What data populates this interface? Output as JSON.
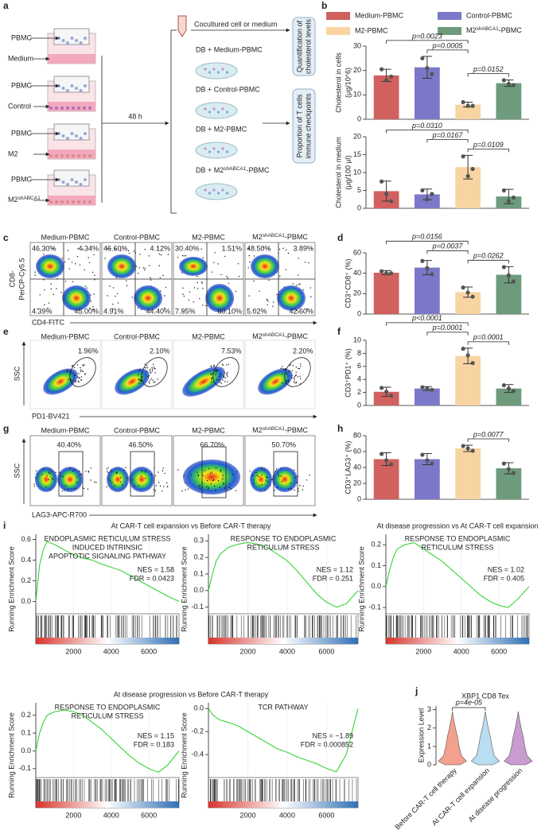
{
  "a": {
    "label": "a",
    "tubes": [
      {
        "top": "PBMC",
        "bottom": "Medium"
      },
      {
        "top": "PBMC",
        "bottom": "Control"
      },
      {
        "top": "PBMC",
        "bottom": "M2"
      },
      {
        "top": "PBMC",
        "bottom": {
          "pre": "M2",
          "sup": "shABCA1"
        }
      }
    ],
    "time": "48 h",
    "transfer": "Cocultured cell or medium",
    "dishes": [
      "DB + Medium-PBMC",
      "DB + Control-PBMC",
      "DB + M2-PBMC",
      {
        "pre": "DB + M2",
        "sup": "shABCA1",
        "post": "-PBMC"
      }
    ],
    "outputs": [
      [
        "Quantification of",
        "cholesterol levels"
      ],
      [
        "Proportion of T cells",
        "immune checkpoints"
      ]
    ]
  },
  "groups": [
    {
      "name": "Medium-PBMC",
      "color": "#d0615f"
    },
    {
      "name": "Control-PBMC",
      "color": "#7c78c9"
    },
    {
      "name": "M2-PBMC",
      "color": "#f8d4a3"
    },
    {
      "name": {
        "pre": "M2",
        "sup": "shABCA1",
        "post": "-PBMC"
      },
      "color": "#6d9b7c"
    }
  ],
  "b": {
    "label": "b",
    "charts": [
      {
        "ylabel": [
          "Cholesterol in cells",
          "(μg/10^6)"
        ],
        "ylim": [
          0,
          30
        ],
        "yticks": [
          0,
          10,
          20,
          30
        ],
        "values": [
          18,
          21.3,
          6,
          14.8
        ],
        "errors": [
          2.5,
          4.5,
          1,
          1.3
        ],
        "points": [
          [
            20.5,
            16,
            17.5
          ],
          [
            25,
            21,
            18.5
          ],
          [
            7,
            5.5,
            5.5
          ],
          [
            16,
            14.5,
            14
          ]
        ],
        "comparisons": [
          {
            "label": "p=0.0023",
            "bars": [
              0,
              2
            ]
          },
          {
            "label": "p=0.0005",
            "bars": [
              1,
              2
            ]
          },
          {
            "label": "p=0.0152",
            "bars": [
              2,
              3
            ]
          }
        ]
      },
      {
        "ylabel": [
          "Cholesterol in medium",
          "(μg/100 μl)"
        ],
        "ylim": [
          0,
          20
        ],
        "yticks": [
          0,
          5,
          10,
          15,
          20
        ],
        "values": [
          4.8,
          3.9,
          11.5,
          3.3
        ],
        "errors": [
          2.8,
          1.5,
          3.3,
          2
        ],
        "points": [
          [
            7.5,
            4,
            2
          ],
          [
            5,
            2.5,
            4
          ],
          [
            14.5,
            9,
            11
          ],
          [
            5,
            2,
            3
          ]
        ],
        "comparisons": [
          {
            "label": "p=0.0310",
            "bars": [
              0,
              2
            ]
          },
          {
            "label": "p=0.0167",
            "bars": [
              1,
              2
            ]
          },
          {
            "label": "p=0.0109",
            "bars": [
              2,
              3
            ]
          }
        ]
      }
    ]
  },
  "c": {
    "label": "c",
    "ylabel": [
      "CD8-",
      "PerCP-Cy5.5"
    ],
    "xlabel": "CD4-FITC",
    "quadrants": [
      [
        "46.30%",
        "4.34%",
        "4.39%",
        "45.00%"
      ],
      [
        "46.60%",
        "4.12%",
        "4.91%",
        "44.40%"
      ],
      [
        "30.40%",
        "1.51%",
        "7.95%",
        "60.10%"
      ],
      [
        "48.50%",
        "3.89%",
        "5.02%",
        "42.60%"
      ]
    ]
  },
  "d": {
    "label": "d",
    "ylabel": [
      "CD3⁺CD8⁺ (%)"
    ],
    "ylim": [
      0,
      60
    ],
    "yticks": [
      0,
      20,
      40,
      60
    ],
    "values": [
      40.5,
      45.5,
      21.5,
      38.5
    ],
    "errors": [
      2,
      7,
      5,
      8
    ],
    "points": [
      [
        42,
        40,
        40
      ],
      [
        52,
        45,
        39
      ],
      [
        26,
        21,
        17
      ],
      [
        46,
        38,
        32
      ]
    ],
    "comparisons": [
      {
        "label": "p=0.0156",
        "bars": [
          0,
          2
        ]
      },
      {
        "label": "p=0.0037",
        "bars": [
          1,
          2
        ]
      },
      {
        "label": "p=0.0262",
        "bars": [
          2,
          3
        ]
      }
    ]
  },
  "e": {
    "label": "e",
    "ylabel": "SSC",
    "xlabel": "PD1-BV421",
    "gates": [
      "1.96%",
      "2.10%",
      "7.53%",
      "2.20%"
    ]
  },
  "f": {
    "label": "f",
    "ylabel": [
      "CD3⁺PD1⁺ (%)"
    ],
    "ylim": [
      0,
      10
    ],
    "yticks": [
      0,
      2,
      4,
      6,
      8,
      10
    ],
    "values": [
      2.1,
      2.6,
      7.6,
      2.6
    ],
    "errors": [
      0.7,
      0.3,
      1.2,
      0.6
    ],
    "points": [
      [
        2.7,
        2.1,
        1.5
      ],
      [
        2.8,
        2.6,
        2.4
      ],
      [
        8.7,
        7.7,
        6.5
      ],
      [
        3.1,
        2.6,
        2.2
      ]
    ],
    "comparisons": [
      {
        "label": "p<0.0001",
        "bars": [
          0,
          2
        ]
      },
      {
        "label": "p=0.0001",
        "bars": [
          1,
          2
        ]
      },
      {
        "label": "p=0.0001",
        "bars": [
          2,
          3
        ]
      }
    ]
  },
  "g": {
    "label": "g",
    "ylabel": "SSC",
    "xlabel": "LAG3-APC-R700",
    "gates": [
      "40.40%",
      "46.50%",
      "66.70%",
      "50.70%"
    ]
  },
  "h": {
    "label": "h",
    "ylabel": [
      "CD3⁺LAG3⁺ (%)"
    ],
    "ylim": [
      0,
      80
    ],
    "yticks": [
      0,
      20,
      40,
      60,
      80
    ],
    "values": [
      50.5,
      50.5,
      64,
      39
    ],
    "errors": [
      8,
      7,
      4,
      7
    ],
    "points": [
      [
        57,
        49,
        44
      ],
      [
        56,
        49,
        45
      ],
      [
        67,
        64,
        61
      ],
      [
        45,
        38,
        33
      ]
    ],
    "comparisons": [
      {
        "label": "p=0.0077",
        "bars": [
          2,
          3
        ]
      }
    ]
  },
  "i": {
    "label": "i",
    "headers": [
      "At CAR-T cell expansion vs Before CAR-T therapy",
      "At disease progression vs At CAR-T cell expansion",
      "At disease progression vs Before CAR-T therapy"
    ],
    "ylabel": "Running Enrichment Score",
    "plots": [
      {
        "title": [
          "ENDOPLASMIC RETICULUM STRESS",
          "INDUCED INTRINSIC",
          "APOPTOTIC SIGNALING PATHWAY"
        ],
        "nes": "NES = 1.58",
        "fdr": "FDR = 0.0423",
        "ylim": [
          -0.12,
          0.65
        ],
        "yticks": [
          {
            "value": 0,
            "label": "0.0"
          },
          0.2,
          0.4,
          0.6
        ],
        "xlim": [
          0,
          7600
        ],
        "xticks": [
          2000,
          4000,
          6000
        ],
        "x": [
          0,
          200,
          400,
          600,
          1000,
          1500,
          2000,
          2500,
          3000,
          3500,
          4000,
          4500,
          5000,
          5500,
          6000,
          6500,
          7000,
          7600
        ],
        "values": [
          0,
          0.35,
          0.5,
          0.58,
          0.55,
          0.5,
          0.45,
          0.42,
          0.4,
          0.36,
          0.33,
          0.3,
          0.25,
          0.2,
          0.15,
          0.1,
          0.05,
          0
        ]
      },
      {
        "title": [
          "RESPONSE TO ENDOPLASMIC",
          "RETICULUM STRESS"
        ],
        "nes": "NES = 1.12",
        "fdr": "FDR = 0.251",
        "ylim": [
          -0.14,
          0.34
        ],
        "yticks": [
          -0.1,
          {
            "value": 0,
            "label": "0.0"
          },
          0.1,
          0.2,
          0.3
        ],
        "xlim": [
          0,
          7600
        ],
        "xticks": [
          2000,
          4000,
          6000
        ],
        "x": [
          0,
          200,
          400,
          600,
          1000,
          1500,
          2000,
          2500,
          3000,
          3500,
          4000,
          4500,
          5000,
          5500,
          6000,
          6500,
          7000,
          7600
        ],
        "values": [
          0,
          0.1,
          0.18,
          0.22,
          0.26,
          0.28,
          0.29,
          0.28,
          0.26,
          0.22,
          0.18,
          0.12,
          0.05,
          -0.02,
          -0.07,
          -0.1,
          -0.08,
          0
        ]
      },
      {
        "title": [
          "RESPONSE TO ENDOPLASMIC",
          "RETICULUM STRESS"
        ],
        "nes": "NES = 1.02",
        "fdr": "FDR = 0.405",
        "ylim": [
          -0.13,
          0.25
        ],
        "yticks": [
          -0.1,
          {
            "value": 0,
            "label": "0.0"
          },
          0.1,
          0.2
        ],
        "xlim": [
          0,
          7600
        ],
        "xticks": [
          2000,
          4000,
          6000
        ],
        "x": [
          0,
          200,
          400,
          600,
          1000,
          1500,
          2000,
          2500,
          3000,
          3500,
          4000,
          4500,
          5000,
          5500,
          6000,
          6500,
          7000,
          7600
        ],
        "values": [
          0,
          0.08,
          0.14,
          0.18,
          0.2,
          0.21,
          0.18,
          0.15,
          0.12,
          0.08,
          0.04,
          0,
          -0.04,
          -0.07,
          -0.09,
          -0.1,
          -0.06,
          0
        ]
      },
      {
        "title": [
          "RESPONSE TO ENDOPLASMIC",
          "RETICULUM STRESS"
        ],
        "nes": "NES = 1.15",
        "fdr": "FDR = 0.183",
        "ylim": [
          -0.15,
          0.27
        ],
        "yticks": [
          -0.1,
          {
            "value": 0,
            "label": "0.0"
          },
          0.1,
          0.2
        ],
        "xlim": [
          0,
          7600
        ],
        "xticks": [
          2000,
          4000,
          6000
        ],
        "x": [
          0,
          200,
          400,
          600,
          1000,
          1500,
          2000,
          2500,
          3000,
          3500,
          4000,
          4500,
          5000,
          5500,
          6000,
          6500,
          7000,
          7600
        ],
        "values": [
          0,
          0.1,
          0.16,
          0.2,
          0.22,
          0.23,
          0.22,
          0.2,
          0.16,
          0.12,
          0.07,
          0.02,
          -0.03,
          -0.07,
          -0.1,
          -0.12,
          -0.08,
          0
        ]
      },
      {
        "title": [
          "TCR PATHWAY"
        ],
        "nes": "NES = −1.89",
        "fdr": "FDR = 0.000852",
        "ylim": [
          -0.6,
          0.05
        ],
        "yticks": [
          -0.4,
          -0.2,
          {
            "value": 0,
            "label": "0.0"
          }
        ],
        "xlim": [
          0,
          7600
        ],
        "xticks": [
          2000,
          4000,
          6000
        ],
        "x": [
          0,
          200,
          400,
          600,
          1000,
          1500,
          2000,
          2500,
          3000,
          3500,
          4000,
          4500,
          5000,
          5500,
          6000,
          6500,
          7000,
          7600
        ],
        "values": [
          0,
          -0.05,
          -0.08,
          -0.1,
          -0.12,
          -0.15,
          -0.2,
          -0.25,
          -0.3,
          -0.35,
          -0.38,
          -0.42,
          -0.45,
          -0.48,
          -0.52,
          -0.55,
          -0.4,
          0
        ]
      }
    ]
  },
  "j": {
    "label": "j",
    "title": "XBP1 CD8 Tex",
    "ylabel": "Expression Level",
    "ylim": [
      0,
      3.2
    ],
    "yticks": [
      0,
      1,
      2,
      3
    ],
    "categories": [
      "Before CAR-T cell therapy",
      "At CAR-T cell expansion",
      "At disease progression"
    ],
    "colors": [
      "#f4a08f",
      "#b9def2",
      "#c99bd0"
    ],
    "comparison": {
      "label": "p=4e-05",
      "bars": [
        0,
        1
      ]
    }
  }
}
